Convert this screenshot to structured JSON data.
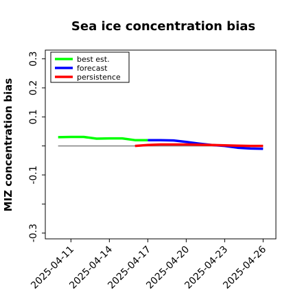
{
  "chart_data": {
    "type": "line",
    "title": "Sea ice concentration bias",
    "xlabel": "",
    "ylabel": "MIZ concentration bias",
    "ylim": [
      -0.32,
      0.33
    ],
    "yticks": [
      -0.3,
      -0.2,
      -0.1,
      0.0,
      0.1,
      0.2,
      0.3
    ],
    "ytick_labels": [
      "-0.3",
      "",
      "-0.1",
      "",
      "0.1",
      "0.2",
      "0.3"
    ],
    "xlim": [
      "2025-04-09",
      "2025-04-27"
    ],
    "xticks": [
      "2025-04-11",
      "2025-04-14",
      "2025-04-17",
      "2025-04-20",
      "2025-04-23",
      "2025-04-26"
    ],
    "highlighted_xtick": "2025-04-17",
    "highlight_color": "#228b22",
    "grid": false,
    "legend_position": "top-left",
    "zero_line": {
      "value": 0.0,
      "color": "#808080",
      "x_start": "2025-04-10",
      "x_end": "2025-04-26"
    },
    "series": [
      {
        "name": "best est.",
        "color": "#00ff00",
        "x": [
          "2025-04-10",
          "2025-04-11",
          "2025-04-12",
          "2025-04-13",
          "2025-04-14",
          "2025-04-15",
          "2025-04-16",
          "2025-04-17"
        ],
        "y": [
          0.03,
          0.031,
          0.031,
          0.025,
          0.026,
          0.026,
          0.02,
          0.02
        ]
      },
      {
        "name": "forecast",
        "color": "#0000ff",
        "x": [
          "2025-04-17",
          "2025-04-18",
          "2025-04-19",
          "2025-04-20",
          "2025-04-21",
          "2025-04-22",
          "2025-04-23",
          "2025-04-24",
          "2025-04-25",
          "2025-04-26"
        ],
        "y": [
          0.02,
          0.02,
          0.019,
          0.014,
          0.008,
          0.003,
          0.0,
          -0.006,
          -0.009,
          -0.01
        ]
      },
      {
        "name": "persistence",
        "color": "#ff0000",
        "x": [
          "2025-04-16",
          "2025-04-17",
          "2025-04-18",
          "2025-04-19",
          "2025-04-20",
          "2025-04-21",
          "2025-04-22",
          "2025-04-23",
          "2025-04-24",
          "2025-04-25",
          "2025-04-26"
        ],
        "y": [
          0.0,
          0.003,
          0.005,
          0.005,
          0.005,
          0.004,
          0.003,
          0.002,
          0.001,
          0.0,
          0.0
        ]
      }
    ]
  }
}
